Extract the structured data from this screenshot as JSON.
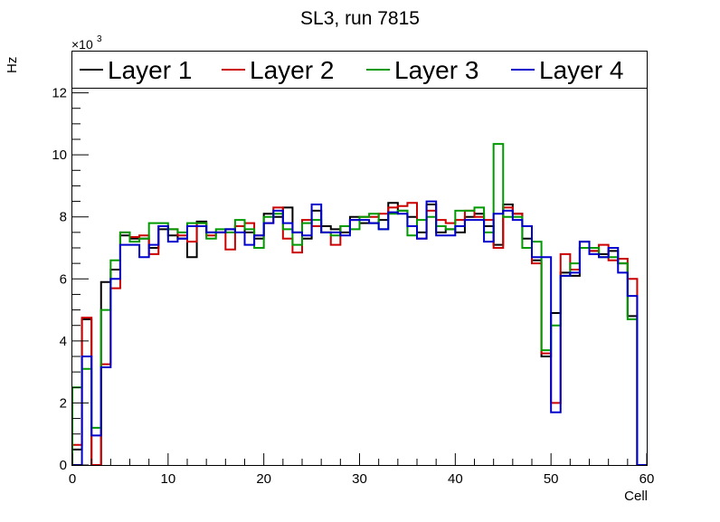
{
  "chart_data": {
    "type": "step",
    "title": "SL3, run 7815",
    "xlabel": "Cell",
    "ylabel": "Hz",
    "y_multiplier": "×10",
    "y_multiplier_exp": "3",
    "xlim": [
      0,
      60
    ],
    "ylim": [
      0,
      12.6
    ],
    "x_ticks": [
      0,
      10,
      20,
      30,
      40,
      50,
      60
    ],
    "y_ticks": [
      0,
      2,
      4,
      6,
      8,
      10,
      12
    ],
    "bin_width": 1,
    "series": [
      {
        "name": "Layer 1",
        "color": "#000000",
        "values": [
          0.5,
          4.7,
          0,
          5.9,
          6.3,
          7.4,
          7.3,
          7.3,
          7.0,
          7.6,
          7.4,
          7.3,
          6.7,
          7.85,
          7.5,
          7.5,
          7.6,
          7.7,
          7.5,
          7.3,
          8.1,
          8.0,
          8.3,
          7.5,
          7.3,
          8.2,
          7.7,
          7.6,
          7.5,
          8.0,
          7.8,
          7.8,
          7.9,
          8.45,
          8.2,
          8.0,
          7.5,
          8.4,
          7.5,
          7.6,
          7.5,
          8.0,
          8.1,
          7.7,
          7.1,
          8.4,
          8.1,
          7.3,
          6.6,
          3.5,
          4.9,
          6.2,
          6.1,
          7.2,
          6.9,
          6.8,
          6.9,
          6.5,
          4.8,
          0
        ]
      },
      {
        "name": "Layer 2",
        "color": "#cc0000",
        "values": [
          0.65,
          4.75,
          0,
          3.25,
          5.7,
          7.5,
          7.35,
          7.4,
          6.8,
          7.7,
          7.6,
          7.4,
          7.2,
          7.8,
          7.4,
          7.5,
          6.95,
          7.7,
          7.8,
          7.4,
          7.8,
          8.3,
          7.3,
          6.85,
          7.9,
          7.7,
          7.5,
          7.1,
          7.7,
          7.9,
          8.0,
          8.0,
          8.1,
          8.3,
          8.35,
          8.45,
          7.3,
          8.2,
          7.9,
          7.8,
          7.9,
          8.2,
          8.0,
          7.9,
          7.0,
          8.3,
          8.1,
          7.7,
          6.5,
          3.6,
          2.0,
          6.8,
          6.3,
          7.0,
          6.9,
          7.1,
          6.6,
          6.65,
          6.0,
          0
        ]
      },
      {
        "name": "Layer 3",
        "color": "#009900",
        "values": [
          2.5,
          3.1,
          1.2,
          5.0,
          6.6,
          7.5,
          7.2,
          7.3,
          7.8,
          7.8,
          7.6,
          7.5,
          7.8,
          7.8,
          7.3,
          7.6,
          7.5,
          7.9,
          7.6,
          7.0,
          8.0,
          8.1,
          7.6,
          7.1,
          7.8,
          7.9,
          7.5,
          7.4,
          7.7,
          7.6,
          8.0,
          8.1,
          7.6,
          8.1,
          8.2,
          7.4,
          7.9,
          8.0,
          7.7,
          7.6,
          8.2,
          8.2,
          8.3,
          7.5,
          10.35,
          8.0,
          8.0,
          7.0,
          7.2,
          3.7,
          4.5,
          6.1,
          6.5,
          7.0,
          7.0,
          6.7,
          6.7,
          6.5,
          4.7,
          0
        ]
      },
      {
        "name": "Layer 4",
        "color": "#0000cc",
        "values": [
          0,
          3.5,
          0.95,
          3.15,
          6.0,
          7.1,
          7.1,
          6.7,
          7.1,
          7.7,
          7.2,
          7.3,
          7.7,
          7.7,
          7.5,
          7.5,
          7.6,
          7.5,
          7.1,
          7.4,
          7.8,
          8.2,
          7.8,
          7.5,
          7.4,
          8.4,
          7.5,
          7.5,
          7.4,
          7.9,
          7.9,
          7.8,
          7.6,
          8.15,
          8.1,
          7.7,
          7.3,
          8.5,
          7.4,
          7.4,
          7.7,
          7.9,
          7.9,
          7.2,
          8.1,
          8.2,
          7.9,
          7.7,
          6.7,
          6.7,
          1.7,
          6.1,
          6.2,
          7.2,
          6.8,
          6.7,
          7.0,
          6.2,
          5.45,
          0
        ]
      }
    ]
  }
}
